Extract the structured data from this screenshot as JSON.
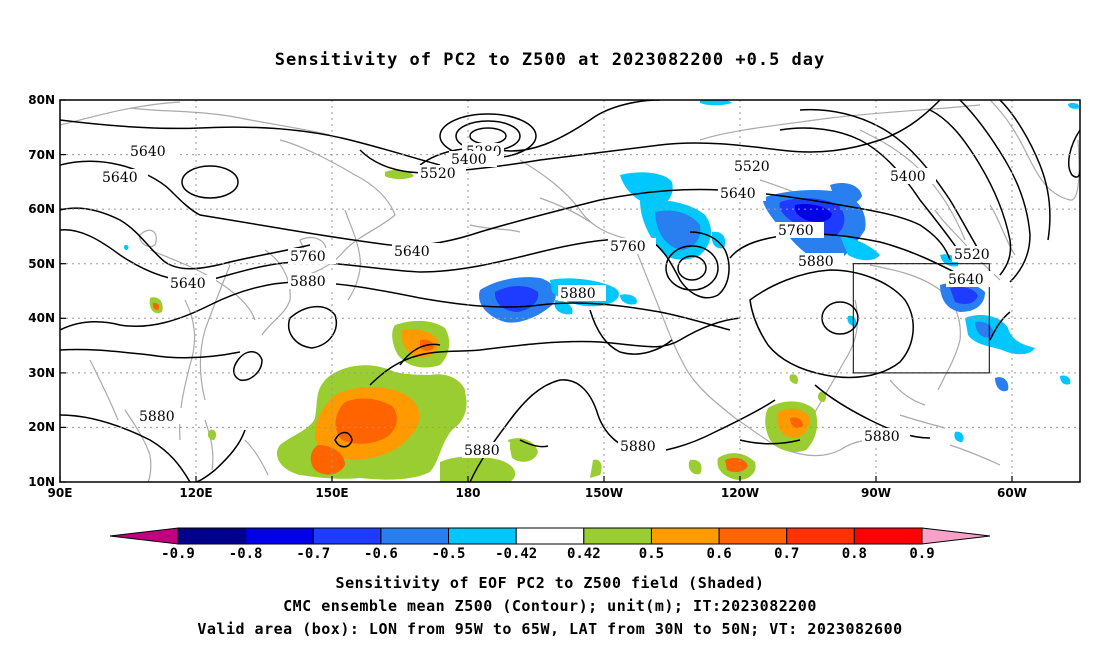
{
  "title": "Sensitivity of PC2 to Z500 at 2023082200 +0.5 day",
  "lat_ticks": [
    "80N",
    "70N",
    "60N",
    "50N",
    "40N",
    "30N",
    "20N",
    "10N"
  ],
  "lon_ticks": [
    "90E",
    "120E",
    "150E",
    "180",
    "150W",
    "120W",
    "90W",
    "60W"
  ],
  "contour_labels": [
    "5280",
    "5400",
    "5520",
    "5640",
    "5640",
    "5640",
    "5640",
    "5760",
    "5880",
    "5880",
    "5880",
    "5880",
    "5880",
    "5520",
    "5640",
    "5760",
    "5760",
    "5880",
    "5880",
    "5400",
    "5520",
    "5640"
  ],
  "colorbar": {
    "labels": [
      "-0.9",
      "-0.8",
      "-0.7",
      "-0.6",
      "-0.5",
      "-0.42",
      "0.42",
      "0.5",
      "0.6",
      "0.7",
      "0.8",
      "0.9"
    ],
    "colors": [
      "#c2007e",
      "#00008c",
      "#0000e6",
      "#1e3cff",
      "#2a7ff0",
      "#00c8ff",
      "#ffffff",
      "#9acd32",
      "#ff9a00",
      "#ff6400",
      "#ff3200",
      "#ff0000",
      "#f7a0c8"
    ]
  },
  "valid_box": {
    "lon_west": -95,
    "lon_east": -65,
    "lat_south": 30,
    "lat_north": 50
  },
  "captions": [
    "Sensitivity of EOF PC2 to Z500 field (Shaded)",
    "CMC ensemble mean Z500 (Contour); unit(m); IT:2023082200",
    "Valid area (box): LON from 95W to 65W, LAT from 30N to 50N; VT: 2023082600"
  ]
}
